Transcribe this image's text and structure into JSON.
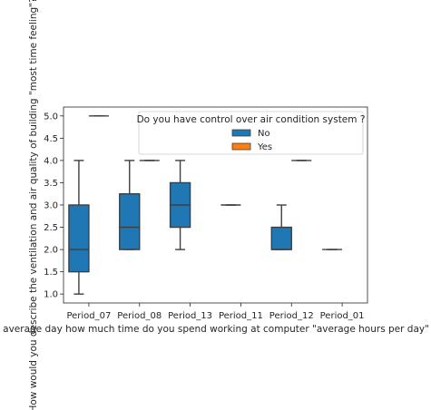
{
  "chart_data": {
    "type": "box",
    "categories": [
      "Period_07",
      "Period_08",
      "Period_13",
      "Period_11",
      "Period_12",
      "Period_01"
    ],
    "xlabel": "In average day how much time do you spend working at computer  \"average hours per day\"",
    "ylabel": "How would you describe the ventilation and air quality of building  \"most time feeling\"?",
    "ylim": [
      0.8,
      5.2
    ],
    "yticks": [
      1.0,
      1.5,
      2.0,
      2.5,
      3.0,
      3.5,
      4.0,
      4.5,
      5.0
    ],
    "ytick_labels": [
      "1.0",
      "1.5",
      "2.0",
      "2.5",
      "3.0",
      "3.5",
      "4.0",
      "4.5",
      "5.0"
    ],
    "legend": {
      "title": "Do you have control over air condition system ?",
      "placement": "top-right",
      "entries": [
        "No",
        "Yes"
      ]
    },
    "series": [
      {
        "name": "No",
        "color": "#1f77b4",
        "boxes": [
          {
            "category": "Period_07",
            "whisker_low": 1.0,
            "q1": 1.5,
            "median": 2.0,
            "q3": 3.0,
            "whisker_high": 4.0
          },
          {
            "category": "Period_08",
            "whisker_low": 2.0,
            "q1": 2.0,
            "median": 2.5,
            "q3": 3.25,
            "whisker_high": 4.0
          },
          {
            "category": "Period_13",
            "whisker_low": 2.0,
            "q1": 2.5,
            "median": 3.0,
            "q3": 3.5,
            "whisker_high": 4.0
          },
          {
            "category": "Period_11",
            "whisker_low": 3.0,
            "q1": 3.0,
            "median": 3.0,
            "q3": 3.0,
            "whisker_high": 3.0
          },
          {
            "category": "Period_12",
            "whisker_low": 2.0,
            "q1": 2.0,
            "median": 2.0,
            "q3": 2.5,
            "whisker_high": 3.0
          },
          {
            "category": "Period_01",
            "whisker_low": 2.0,
            "q1": 2.0,
            "median": 2.0,
            "q3": 2.0,
            "whisker_high": 2.0
          }
        ]
      },
      {
        "name": "Yes",
        "color": "#ff7f0e",
        "boxes": [
          {
            "category": "Period_07",
            "whisker_low": 5.0,
            "q1": 5.0,
            "median": 5.0,
            "q3": 5.0,
            "whisker_high": 5.0
          },
          {
            "category": "Period_08",
            "whisker_low": 4.0,
            "q1": 4.0,
            "median": 4.0,
            "q3": 4.0,
            "whisker_high": 4.0
          },
          {
            "category": "Period_12",
            "whisker_low": 4.0,
            "q1": 4.0,
            "median": 4.0,
            "q3": 4.0,
            "whisker_high": 4.0
          }
        ]
      }
    ]
  }
}
